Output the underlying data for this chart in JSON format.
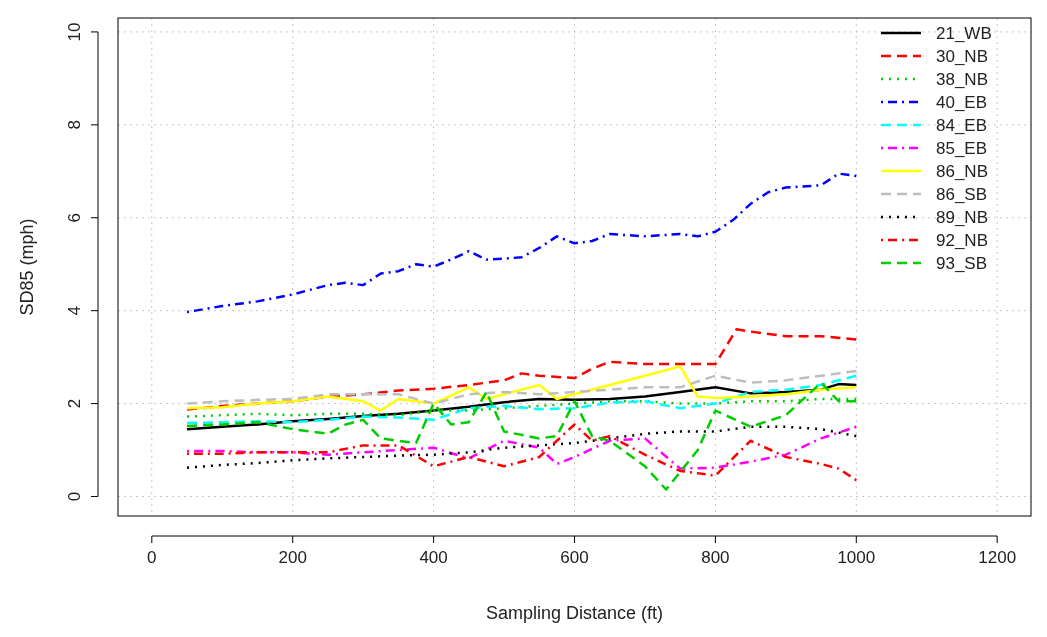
{
  "chart_data": {
    "type": "line",
    "xlabel": "Sampling Distance (ft)",
    "ylabel": "SD85 (mph)",
    "xlim": [
      -48,
      1248
    ],
    "xticks": [
      0,
      200,
      400,
      600,
      800,
      1000,
      1200
    ],
    "ylim": [
      -0.42,
      10.3
    ],
    "yticks": [
      0,
      2,
      4,
      6,
      8,
      10
    ],
    "grid": true,
    "legend": "top right",
    "series": [
      {
        "name": "21_WB",
        "color": "#000000",
        "line_style": "solid",
        "x": [
          50,
          100,
          150,
          200,
          250,
          300,
          350,
          400,
          450,
          500,
          550,
          600,
          650,
          700,
          750,
          800,
          850,
          900,
          950,
          975,
          1000
        ],
        "values": [
          1.45,
          1.5,
          1.55,
          1.62,
          1.67,
          1.73,
          1.78,
          1.85,
          1.93,
          2.03,
          2.1,
          2.08,
          2.1,
          2.15,
          2.25,
          2.35,
          2.22,
          2.25,
          2.3,
          2.42,
          2.4
        ]
      },
      {
        "name": "30_NB",
        "color": "#ff0000",
        "line_style": "dashed",
        "x": [
          50,
          100,
          150,
          200,
          250,
          300,
          350,
          400,
          450,
          475,
          500,
          525,
          550,
          600,
          625,
          650,
          700,
          800,
          830,
          850,
          900,
          950,
          1000
        ],
        "values": [
          1.87,
          1.95,
          2.0,
          2.05,
          2.15,
          2.2,
          2.28,
          2.32,
          2.4,
          2.45,
          2.5,
          2.65,
          2.6,
          2.55,
          2.75,
          2.9,
          2.85,
          2.85,
          3.6,
          3.55,
          3.45,
          3.45,
          3.38
        ]
      },
      {
        "name": "38_NB",
        "color": "#00cd00",
        "line_style": "dotted",
        "x": [
          50,
          100,
          150,
          200,
          250,
          300,
          350,
          400,
          450,
          500,
          550,
          600,
          650,
          700,
          750,
          800,
          850,
          900,
          950,
          1000
        ],
        "values": [
          1.72,
          1.75,
          1.78,
          1.75,
          1.78,
          1.78,
          1.75,
          1.85,
          1.85,
          1.9,
          1.95,
          2.0,
          2.05,
          2.05,
          2.0,
          2.0,
          2.05,
          2.05,
          2.1,
          2.1
        ]
      },
      {
        "name": "40_EB",
        "color": "#0000ff",
        "line_style": "dashdot",
        "x": [
          50,
          100,
          150,
          200,
          250,
          275,
          300,
          325,
          350,
          375,
          400,
          425,
          450,
          475,
          500,
          525,
          550,
          575,
          600,
          625,
          650,
          700,
          750,
          775,
          800,
          825,
          850,
          875,
          900,
          950,
          975,
          1000
        ],
        "values": [
          3.97,
          4.1,
          4.2,
          4.35,
          4.55,
          4.6,
          4.55,
          4.8,
          4.85,
          5.0,
          4.95,
          5.1,
          5.28,
          5.1,
          5.12,
          5.15,
          5.35,
          5.6,
          5.45,
          5.5,
          5.65,
          5.6,
          5.65,
          5.6,
          5.7,
          5.95,
          6.3,
          6.55,
          6.65,
          6.7,
          6.95,
          6.9
        ]
      },
      {
        "name": "84_EB",
        "color": "#00ffff",
        "line_style": "dashed",
        "x": [
          50,
          100,
          150,
          200,
          250,
          300,
          350,
          400,
          450,
          500,
          550,
          600,
          650,
          700,
          750,
          800,
          850,
          900,
          950,
          1000
        ],
        "values": [
          1.58,
          1.6,
          1.62,
          1.6,
          1.65,
          1.72,
          1.7,
          1.65,
          1.9,
          1.95,
          1.88,
          1.9,
          2.02,
          2.05,
          1.9,
          2.0,
          2.25,
          2.3,
          2.4,
          2.6
        ]
      },
      {
        "name": "85_EB",
        "color": "#ff00ff",
        "line_style": "dashdot",
        "x": [
          50,
          100,
          150,
          200,
          250,
          300,
          350,
          400,
          450,
          500,
          550,
          575,
          600,
          650,
          700,
          750,
          800,
          850,
          900,
          950,
          1000
        ],
        "values": [
          0.98,
          0.98,
          0.95,
          0.95,
          0.9,
          0.95,
          1.0,
          1.05,
          0.82,
          1.2,
          1.05,
          0.7,
          0.85,
          1.2,
          1.25,
          0.6,
          0.62,
          0.75,
          0.9,
          1.25,
          1.5
        ]
      },
      {
        "name": "86_NB",
        "color": "#ffff00",
        "line_style": "solid",
        "x": [
          50,
          100,
          150,
          200,
          250,
          300,
          325,
          350,
          400,
          450,
          475,
          525,
          550,
          575,
          600,
          650,
          700,
          750,
          775,
          800,
          850,
          900,
          950,
          1000
        ],
        "values": [
          1.9,
          1.92,
          2.0,
          2.05,
          2.15,
          2.05,
          1.85,
          2.1,
          2.0,
          2.35,
          2.1,
          2.3,
          2.4,
          2.1,
          2.2,
          2.4,
          2.6,
          2.8,
          2.15,
          2.12,
          2.15,
          2.2,
          2.3,
          2.35
        ]
      },
      {
        "name": "86_SB",
        "color": "#bebebe",
        "line_style": "dashed",
        "x": [
          50,
          100,
          150,
          200,
          250,
          300,
          350,
          400,
          450,
          500,
          550,
          600,
          650,
          700,
          750,
          800,
          850,
          900,
          950,
          1000
        ],
        "values": [
          2.0,
          2.05,
          2.08,
          2.1,
          2.2,
          2.2,
          2.2,
          2.0,
          2.2,
          2.25,
          2.2,
          2.25,
          2.3,
          2.35,
          2.35,
          2.6,
          2.45,
          2.5,
          2.6,
          2.7
        ]
      },
      {
        "name": "89_NB",
        "color": "#000000",
        "line_style": "dotted",
        "x": [
          50,
          100,
          150,
          200,
          250,
          300,
          350,
          400,
          450,
          500,
          550,
          600,
          650,
          700,
          750,
          800,
          850,
          900,
          950,
          1000
        ],
        "values": [
          0.62,
          0.68,
          0.72,
          0.78,
          0.82,
          0.85,
          0.88,
          0.9,
          0.95,
          1.05,
          1.1,
          1.15,
          1.25,
          1.35,
          1.4,
          1.4,
          1.5,
          1.5,
          1.45,
          1.3
        ]
      },
      {
        "name": "92_NB",
        "color": "#ff0000",
        "line_style": "dashdot",
        "x": [
          50,
          100,
          150,
          200,
          250,
          300,
          350,
          400,
          450,
          500,
          550,
          600,
          625,
          650,
          700,
          750,
          800,
          850,
          900,
          950,
          975,
          1000
        ],
        "values": [
          0.92,
          0.92,
          0.95,
          0.95,
          0.95,
          1.1,
          1.1,
          0.65,
          0.85,
          0.65,
          0.85,
          1.55,
          1.2,
          1.3,
          0.9,
          0.55,
          0.45,
          1.2,
          0.85,
          0.7,
          0.6,
          0.35
        ]
      },
      {
        "name": "93_SB",
        "color": "#00cd00",
        "line_style": "dashed",
        "x": [
          50,
          100,
          150,
          200,
          250,
          275,
          300,
          325,
          375,
          400,
          425,
          450,
          475,
          500,
          550,
          575,
          600,
          625,
          650,
          700,
          730,
          775,
          800,
          850,
          900,
          950,
          975,
          1000
        ],
        "values": [
          1.52,
          1.55,
          1.6,
          1.45,
          1.35,
          1.55,
          1.65,
          1.25,
          1.15,
          2.0,
          1.55,
          1.6,
          2.25,
          1.4,
          1.25,
          1.3,
          2.05,
          1.3,
          1.2,
          0.65,
          0.15,
          1.0,
          1.85,
          1.5,
          1.75,
          2.45,
          2.05,
          2.05
        ]
      }
    ]
  }
}
